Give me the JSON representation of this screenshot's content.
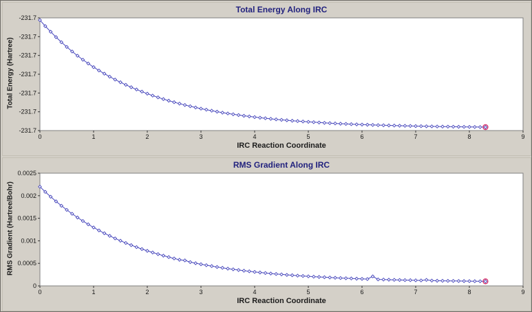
{
  "theme": {
    "bg": "#d4d0c8",
    "title": "#22227e",
    "plot_border": "#7f7f7f",
    "tick_color": "#333333"
  },
  "chart_data": [
    {
      "type": "line",
      "title": "Total Energy Along IRC",
      "xlabel": "IRC Reaction Coordinate",
      "ylabel": "Total Energy (Hartree)",
      "legend": null,
      "grid": false,
      "marker": "open-diamond",
      "line_color": "#4444bb",
      "endpoint_color": "#d9356b",
      "x_range": [
        0,
        9
      ],
      "y_range": [
        -231.77,
        -231.68
      ],
      "x_ticks": [
        {
          "value": 0,
          "label": "0"
        },
        {
          "value": 1,
          "label": "1"
        },
        {
          "value": 2,
          "label": "2"
        },
        {
          "value": 3,
          "label": "3"
        },
        {
          "value": 4,
          "label": "4"
        },
        {
          "value": 5,
          "label": "5"
        },
        {
          "value": 6,
          "label": "6"
        },
        {
          "value": 7,
          "label": "7"
        },
        {
          "value": 8,
          "label": "8"
        },
        {
          "value": 9,
          "label": "9"
        }
      ],
      "y_ticks": [
        {
          "value": -231.68,
          "label": "-231.7"
        },
        {
          "value": -231.695,
          "label": "-231.7"
        },
        {
          "value": -231.71,
          "label": "-231.7"
        },
        {
          "value": -231.725,
          "label": "-231.7"
        },
        {
          "value": -231.74,
          "label": "-231.7"
        },
        {
          "value": -231.755,
          "label": "-231.7"
        },
        {
          "value": -231.77,
          "label": "-231.7"
        }
      ],
      "x": [
        0,
        0.1,
        0.2,
        0.3,
        0.4,
        0.5,
        0.6,
        0.7,
        0.8,
        0.9,
        1,
        1.1,
        1.2,
        1.3,
        1.4,
        1.5,
        1.6,
        1.7,
        1.8,
        1.9,
        2,
        2.1,
        2.2,
        2.3,
        2.4,
        2.5,
        2.6,
        2.7,
        2.8,
        2.9,
        3,
        3.1,
        3.2,
        3.3,
        3.4,
        3.5,
        3.6,
        3.7,
        3.8,
        3.9,
        4,
        4.1,
        4.2,
        4.3,
        4.4,
        4.5,
        4.6,
        4.7,
        4.8,
        4.9,
        5,
        5.1,
        5.2,
        5.3,
        5.4,
        5.5,
        5.6,
        5.7,
        5.8,
        5.9,
        6,
        6.1,
        6.2,
        6.3,
        6.4,
        6.5,
        6.6,
        6.7,
        6.8,
        6.9,
        7,
        7.1,
        7.2,
        7.3,
        7.4,
        7.5,
        7.6,
        7.7,
        7.8,
        7.9,
        8,
        8.1,
        8.2,
        8.3
      ],
      "y": [
        -231.6818,
        -231.68659,
        -231.69111,
        -231.69538,
        -231.69941,
        -231.70323,
        -231.70682,
        -231.71022,
        -231.71343,
        -231.71646,
        -231.71933,
        -231.72203,
        -231.72458,
        -231.727,
        -231.72927,
        -231.73143,
        -231.73346,
        -231.73538,
        -231.73719,
        -231.7389,
        -231.74052,
        -231.74204,
        -231.74349,
        -231.74485,
        -231.74613,
        -231.74735,
        -231.7485,
        -231.74958,
        -231.7506,
        -231.75157,
        -231.75248,
        -231.75334,
        -231.75416,
        -231.75493,
        -231.75565,
        -231.75634,
        -231.75699,
        -231.7576,
        -231.75818,
        -231.75872,
        -231.75924,
        -231.75972,
        -231.76018,
        -231.76062,
        -231.76103,
        -231.76142,
        -231.76178,
        -231.76213,
        -231.76245,
        -231.76276,
        -231.76305,
        -231.76333,
        -231.76359,
        -231.76383,
        -231.76406,
        -231.76428,
        -231.76449,
        -231.76468,
        -231.76487,
        -231.76504,
        -231.76521,
        -231.76536,
        -231.76551,
        -231.76565,
        -231.76578,
        -231.7659,
        -231.76602,
        -231.76613,
        -231.76623,
        -231.76633,
        -231.76642,
        -231.76651,
        -231.76659,
        -231.76667,
        -231.76675,
        -231.76682,
        -231.76688,
        -231.76694,
        -231.767,
        -231.76706,
        -231.76711,
        -231.76716,
        -231.76721,
        -231.76725
      ]
    },
    {
      "type": "line",
      "title": "RMS Gradient Along IRC",
      "xlabel": "IRC Reaction Coordinate",
      "ylabel": "RMS Gradient (Hartree/Bohr)",
      "legend": null,
      "grid": false,
      "marker": "open-diamond",
      "line_color": "#4444bb",
      "endpoint_color": "#d9356b",
      "x_range": [
        0,
        9
      ],
      "y_range": [
        0,
        0.0025
      ],
      "x_ticks": [
        {
          "value": 0,
          "label": "0"
        },
        {
          "value": 1,
          "label": "1"
        },
        {
          "value": 2,
          "label": "2"
        },
        {
          "value": 3,
          "label": "3"
        },
        {
          "value": 4,
          "label": "4"
        },
        {
          "value": 5,
          "label": "5"
        },
        {
          "value": 6,
          "label": "6"
        },
        {
          "value": 7,
          "label": "7"
        },
        {
          "value": 8,
          "label": "8"
        },
        {
          "value": 9,
          "label": "9"
        }
      ],
      "y_ticks": [
        {
          "value": 0,
          "label": "0"
        },
        {
          "value": 0.0005,
          "label": "0.0005"
        },
        {
          "value": 0.001,
          "label": "0.001"
        },
        {
          "value": 0.0015,
          "label": "0.0015"
        },
        {
          "value": 0.002,
          "label": "0.002"
        },
        {
          "value": 0.0025,
          "label": "0.0025"
        }
      ],
      "x": [
        0,
        0.1,
        0.2,
        0.3,
        0.4,
        0.5,
        0.6,
        0.7,
        0.8,
        0.9,
        1,
        1.1,
        1.2,
        1.3,
        1.4,
        1.5,
        1.6,
        1.7,
        1.8,
        1.9,
        2,
        2.1,
        2.2,
        2.3,
        2.4,
        2.5,
        2.6,
        2.7,
        2.8,
        2.9,
        3,
        3.1,
        3.2,
        3.3,
        3.4,
        3.5,
        3.6,
        3.7,
        3.8,
        3.9,
        4,
        4.1,
        4.2,
        4.3,
        4.4,
        4.5,
        4.6,
        4.7,
        4.8,
        4.9,
        5,
        5.1,
        5.2,
        5.3,
        5.4,
        5.5,
        5.6,
        5.7,
        5.8,
        5.9,
        6,
        6.1,
        6.2,
        6.3,
        6.4,
        6.5,
        6.6,
        6.7,
        6.8,
        6.9,
        7,
        7.1,
        7.2,
        7.3,
        7.4,
        7.5,
        7.6,
        7.7,
        7.8,
        7.9,
        8,
        8.1,
        8.2,
        8.3
      ],
      "y": [
        0.0022,
        0.0020854,
        0.0019771,
        0.0018745,
        0.0017776,
        0.0016858,
        0.001599,
        0.0015169,
        0.0014393,
        0.0013658,
        0.0012964,
        0.0012306,
        0.0011684,
        0.0011096,
        0.001054,
        0.0010014,
        0.0009516,
        0.0009044,
        0.0008599,
        0.0008177,
        0.0007779,
        0.0007402,
        0.0007045,
        0.0006707,
        0.0006388,
        0.0006086,
        0.00058,
        0.000566,
        0.0005275,
        0.0005033,
        0.0004804,
        0.0004588,
        0.0004383,
        0.0004189,
        0.0004006,
        0.0003833,
        0.0003669,
        0.0003514,
        0.0003367,
        0.0003228,
        0.0003097,
        0.0002973,
        0.0002856,
        0.0002744,
        0.0002639,
        0.000254,
        0.0002446,
        0.0002357,
        0.0002273,
        0.0002193,
        0.0002118,
        0.0002047,
        0.0001979,
        0.0001916,
        0.0001855,
        0.0001798,
        0.0001744,
        0.0001693,
        0.0001645,
        0.0001599,
        0.0001556,
        0.0001515,
        0.00021,
        0.000144,
        0.0001405,
        0.0001373,
        0.0001342,
        0.0001313,
        0.0001285,
        0.0001259,
        0.0001234,
        0.000121,
        0.000132,
        0.0001167,
        0.0001147,
        0.0001129,
        0.0001111,
        0.0001094,
        0.0001078,
        0.0001063,
        0.0001049,
        0.0001035,
        0.0001023,
        0.0001011
      ]
    }
  ]
}
